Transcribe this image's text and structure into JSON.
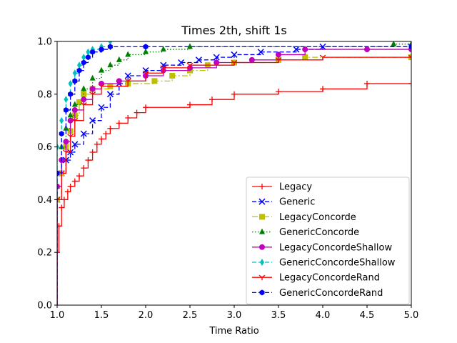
{
  "chart_data": {
    "type": "line",
    "title": "Times 2th, shift 1s",
    "xlabel": "Time Ratio",
    "ylabel": "",
    "xlim": [
      1.0,
      5.0
    ],
    "ylim": [
      0.0,
      1.0
    ],
    "x_ticks": [
      "1.0",
      "1.5",
      "2.0",
      "2.5",
      "3.0",
      "3.5",
      "4.0",
      "4.5",
      "5.0"
    ],
    "y_ticks": [
      "0.0",
      "0.2",
      "0.4",
      "0.6",
      "0.8",
      "1.0"
    ],
    "grid": false,
    "legend_position": "lower-right",
    "series": [
      {
        "name": "Legacy",
        "color": "#ff0000",
        "dash": "solid",
        "marker": "plus",
        "points": [
          [
            1.0,
            0.0
          ],
          [
            1.0,
            0.2
          ],
          [
            1.02,
            0.3
          ],
          [
            1.05,
            0.37
          ],
          [
            1.08,
            0.4
          ],
          [
            1.12,
            0.43
          ],
          [
            1.15,
            0.45
          ],
          [
            1.2,
            0.47
          ],
          [
            1.25,
            0.49
          ],
          [
            1.3,
            0.52
          ],
          [
            1.35,
            0.55
          ],
          [
            1.4,
            0.58
          ],
          [
            1.45,
            0.61
          ],
          [
            1.5,
            0.63
          ],
          [
            1.55,
            0.65
          ],
          [
            1.6,
            0.67
          ],
          [
            1.7,
            0.69
          ],
          [
            1.8,
            0.71
          ],
          [
            1.9,
            0.73
          ],
          [
            2.0,
            0.75
          ],
          [
            2.5,
            0.76
          ],
          [
            2.75,
            0.78
          ],
          [
            3.0,
            0.8
          ],
          [
            3.5,
            0.81
          ],
          [
            4.0,
            0.82
          ],
          [
            4.5,
            0.84
          ],
          [
            5.0,
            0.84
          ]
        ]
      },
      {
        "name": "Generic",
        "color": "#0000ff",
        "dash": "dashed",
        "marker": "x",
        "points": [
          [
            1.0,
            0.0
          ],
          [
            1.0,
            0.4
          ],
          [
            1.05,
            0.5
          ],
          [
            1.1,
            0.55
          ],
          [
            1.15,
            0.58
          ],
          [
            1.2,
            0.61
          ],
          [
            1.3,
            0.65
          ],
          [
            1.4,
            0.7
          ],
          [
            1.5,
            0.75
          ],
          [
            1.6,
            0.8
          ],
          [
            1.7,
            0.84
          ],
          [
            1.8,
            0.87
          ],
          [
            2.0,
            0.89
          ],
          [
            2.2,
            0.91
          ],
          [
            2.4,
            0.92
          ],
          [
            2.6,
            0.93
          ],
          [
            2.8,
            0.94
          ],
          [
            3.0,
            0.95
          ],
          [
            3.3,
            0.96
          ],
          [
            3.7,
            0.97
          ],
          [
            4.0,
            0.98
          ],
          [
            5.0,
            0.98
          ]
        ]
      },
      {
        "name": "LegacyConcorde",
        "color": "#bfbf00",
        "dash": "dashdot",
        "marker": "square",
        "points": [
          [
            1.0,
            0.0
          ],
          [
            1.0,
            0.4
          ],
          [
            1.05,
            0.5
          ],
          [
            1.1,
            0.6
          ],
          [
            1.15,
            0.66
          ],
          [
            1.2,
            0.72
          ],
          [
            1.25,
            0.77
          ],
          [
            1.3,
            0.8
          ],
          [
            1.4,
            0.82
          ],
          [
            1.6,
            0.83
          ],
          [
            1.8,
            0.84
          ],
          [
            2.1,
            0.85
          ],
          [
            2.3,
            0.87
          ],
          [
            2.5,
            0.89
          ],
          [
            2.7,
            0.91
          ],
          [
            3.0,
            0.92
          ],
          [
            3.5,
            0.93
          ],
          [
            3.8,
            0.94
          ],
          [
            5.0,
            0.94
          ]
        ]
      },
      {
        "name": "GenericConcorde",
        "color": "#008000",
        "dash": "dotted",
        "marker": "triangle",
        "points": [
          [
            1.0,
            0.0
          ],
          [
            1.0,
            0.45
          ],
          [
            1.05,
            0.6
          ],
          [
            1.1,
            0.67
          ],
          [
            1.15,
            0.72
          ],
          [
            1.2,
            0.76
          ],
          [
            1.3,
            0.82
          ],
          [
            1.4,
            0.86
          ],
          [
            1.5,
            0.89
          ],
          [
            1.6,
            0.91
          ],
          [
            1.7,
            0.93
          ],
          [
            1.8,
            0.95
          ],
          [
            2.0,
            0.96
          ],
          [
            2.2,
            0.97
          ],
          [
            2.5,
            0.98
          ],
          [
            4.8,
            0.99
          ],
          [
            5.0,
            0.99
          ]
        ]
      },
      {
        "name": "LegacyConcordeShallow",
        "color": "#bf00bf",
        "dash": "solid",
        "marker": "circle",
        "points": [
          [
            1.0,
            0.0
          ],
          [
            1.0,
            0.45
          ],
          [
            1.05,
            0.55
          ],
          [
            1.1,
            0.62
          ],
          [
            1.15,
            0.7
          ],
          [
            1.2,
            0.74
          ],
          [
            1.3,
            0.78
          ],
          [
            1.4,
            0.82
          ],
          [
            1.5,
            0.84
          ],
          [
            1.7,
            0.85
          ],
          [
            2.0,
            0.87
          ],
          [
            2.2,
            0.89
          ],
          [
            2.5,
            0.9
          ],
          [
            2.8,
            0.92
          ],
          [
            3.2,
            0.93
          ],
          [
            3.5,
            0.95
          ],
          [
            3.8,
            0.97
          ],
          [
            4.5,
            0.97
          ],
          [
            5.0,
            0.97
          ]
        ]
      },
      {
        "name": "GenericConcordeShallow",
        "color": "#00bfbf",
        "dash": "dashed",
        "marker": "diamond",
        "points": [
          [
            1.0,
            0.0
          ],
          [
            1.0,
            0.6
          ],
          [
            1.05,
            0.7
          ],
          [
            1.1,
            0.78
          ],
          [
            1.15,
            0.84
          ],
          [
            1.2,
            0.88
          ],
          [
            1.25,
            0.91
          ],
          [
            1.3,
            0.94
          ],
          [
            1.35,
            0.96
          ],
          [
            1.4,
            0.97
          ],
          [
            1.5,
            0.98
          ],
          [
            1.6,
            1.0
          ]
        ]
      },
      {
        "name": "LegacyConcordeRand",
        "color": "#ff0000",
        "dash": "solid",
        "marker": "tri_down",
        "points": [
          [
            1.0,
            0.0
          ],
          [
            1.0,
            0.4
          ],
          [
            1.05,
            0.5
          ],
          [
            1.1,
            0.58
          ],
          [
            1.15,
            0.64
          ],
          [
            1.2,
            0.7
          ],
          [
            1.3,
            0.76
          ],
          [
            1.4,
            0.8
          ],
          [
            1.5,
            0.83
          ],
          [
            1.8,
            0.85
          ],
          [
            2.0,
            0.88
          ],
          [
            2.2,
            0.9
          ],
          [
            2.5,
            0.91
          ],
          [
            3.0,
            0.92
          ],
          [
            3.5,
            0.93
          ],
          [
            4.0,
            0.94
          ],
          [
            5.0,
            0.94
          ]
        ]
      },
      {
        "name": "GenericConcordeRand",
        "color": "#0000ff",
        "dash": "dashed",
        "marker": "hexagon",
        "points": [
          [
            1.0,
            0.0
          ],
          [
            1.0,
            0.5
          ],
          [
            1.05,
            0.65
          ],
          [
            1.1,
            0.74
          ],
          [
            1.15,
            0.8
          ],
          [
            1.2,
            0.85
          ],
          [
            1.25,
            0.89
          ],
          [
            1.3,
            0.92
          ],
          [
            1.35,
            0.94
          ],
          [
            1.4,
            0.96
          ],
          [
            1.5,
            0.97
          ],
          [
            1.6,
            0.98
          ],
          [
            2.0,
            0.98
          ],
          [
            5.0,
            0.98
          ]
        ]
      }
    ]
  }
}
